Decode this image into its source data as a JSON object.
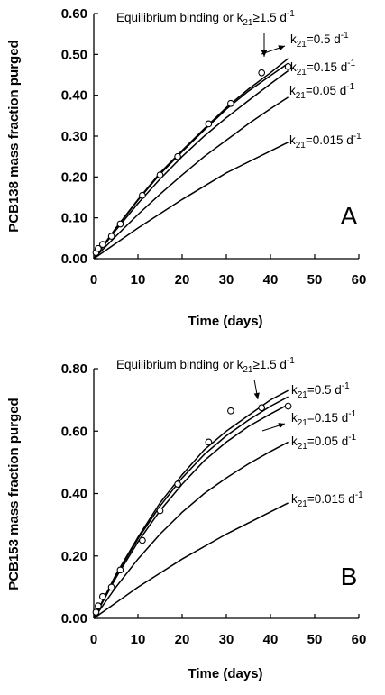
{
  "chart_data": [
    {
      "type": "line",
      "panel_label": "A",
      "xlabel": "Time (days)",
      "ylabel": "PCB138 mass fraction purged",
      "xlim": [
        0,
        60
      ],
      "ylim": [
        0,
        0.6
      ],
      "x_ticks": [
        "0",
        "10",
        "20",
        "30",
        "40",
        "50",
        "60"
      ],
      "y_ticks": [
        "0.00",
        "0.10",
        "0.20",
        "0.30",
        "0.40",
        "0.50",
        "0.60"
      ],
      "grid": false,
      "series": [
        {
          "name": "Equilibrium binding or k21≥1.5 d-1",
          "x": [
            0,
            5,
            10,
            15,
            20,
            25,
            30,
            35,
            40,
            44
          ],
          "y": [
            0,
            0.075,
            0.145,
            0.21,
            0.265,
            0.318,
            0.37,
            0.415,
            0.455,
            0.49
          ]
        },
        {
          "name": "k21=0.5 d-1",
          "x": [
            0,
            5,
            10,
            15,
            20,
            25,
            30,
            35,
            40,
            44
          ],
          "y": [
            0,
            0.074,
            0.143,
            0.207,
            0.262,
            0.315,
            0.366,
            0.41,
            0.448,
            0.478
          ]
        },
        {
          "name": "k21=0.15 d-1",
          "x": [
            0,
            5,
            10,
            15,
            20,
            25,
            30,
            35,
            40,
            44
          ],
          "y": [
            0,
            0.07,
            0.135,
            0.195,
            0.25,
            0.3,
            0.345,
            0.387,
            0.428,
            0.46
          ]
        },
        {
          "name": "k21=0.05 d-1",
          "x": [
            0,
            5,
            10,
            15,
            20,
            25,
            30,
            35,
            40,
            44
          ],
          "y": [
            0,
            0.055,
            0.108,
            0.158,
            0.205,
            0.25,
            0.29,
            0.33,
            0.367,
            0.395
          ]
        },
        {
          "name": "k21=0.015 d-1",
          "x": [
            0,
            10,
            20,
            30,
            44
          ],
          "y": [
            0,
            0.075,
            0.145,
            0.21,
            0.285
          ]
        }
      ],
      "points": {
        "x": [
          0.5,
          1,
          2,
          4,
          6,
          11,
          15,
          19,
          26,
          31,
          38,
          44
        ],
        "y": [
          0.015,
          0.025,
          0.035,
          0.055,
          0.085,
          0.155,
          0.205,
          0.25,
          0.33,
          0.38,
          0.455,
          0.47
        ]
      },
      "annotations": [
        {
          "base": "Equilibrium binding or k",
          "sub": "21",
          "rest": "≥1.5 d",
          "sup": "-1"
        },
        {
          "base": "k",
          "sub": "21",
          "rest": "=0.5 d",
          "sup": "-1"
        },
        {
          "base": "k",
          "sub": "21",
          "rest": "=0.15 d",
          "sup": "-1"
        },
        {
          "base": "k",
          "sub": "21",
          "rest": "=0.05 d",
          "sup": "-1"
        },
        {
          "base": "k",
          "sub": "21",
          "rest": "=0.015 d",
          "sup": "-1"
        }
      ]
    },
    {
      "type": "line",
      "panel_label": "B",
      "xlabel": "Time (days)",
      "ylabel": "PCB153 mass fraction purged",
      "xlim": [
        0,
        60
      ],
      "ylim": [
        0,
        0.8
      ],
      "x_ticks": [
        "0",
        "10",
        "20",
        "30",
        "40",
        "50",
        "60"
      ],
      "y_ticks": [
        "0.00",
        "0.20",
        "0.40",
        "0.60",
        "0.80"
      ],
      "grid": false,
      "series": [
        {
          "name": "Equilibrium binding or k21≥1.5 d-1",
          "x": [
            0,
            5,
            10,
            15,
            20,
            25,
            30,
            35,
            40,
            44
          ],
          "y": [
            0,
            0.14,
            0.26,
            0.37,
            0.46,
            0.54,
            0.6,
            0.65,
            0.7,
            0.73
          ]
        },
        {
          "name": "k21=0.5 d-1",
          "x": [
            0,
            5,
            10,
            15,
            20,
            25,
            30,
            35,
            40,
            44
          ],
          "y": [
            0,
            0.137,
            0.255,
            0.36,
            0.45,
            0.525,
            0.585,
            0.635,
            0.68,
            0.71
          ]
        },
        {
          "name": "k21=0.15 d-1",
          "x": [
            0,
            5,
            10,
            15,
            20,
            25,
            30,
            35,
            40,
            44
          ],
          "y": [
            0,
            0.13,
            0.245,
            0.345,
            0.43,
            0.505,
            0.565,
            0.615,
            0.655,
            0.685
          ]
        },
        {
          "name": "k21=0.05 d-1",
          "x": [
            0,
            5,
            10,
            15,
            20,
            25,
            30,
            35,
            40,
            44
          ],
          "y": [
            0,
            0.1,
            0.19,
            0.27,
            0.34,
            0.4,
            0.45,
            0.495,
            0.535,
            0.565
          ]
        },
        {
          "name": "k21=0.015 d-1",
          "x": [
            0,
            10,
            20,
            30,
            44
          ],
          "y": [
            0,
            0.1,
            0.19,
            0.27,
            0.37
          ]
        }
      ],
      "points": {
        "x": [
          0.5,
          1,
          2,
          4,
          6,
          11,
          15,
          19,
          26,
          31,
          38,
          44
        ],
        "y": [
          0.02,
          0.04,
          0.07,
          0.1,
          0.155,
          0.25,
          0.345,
          0.43,
          0.565,
          0.665,
          0.675,
          0.68
        ]
      },
      "annotations": [
        {
          "base": "Equilibrium binding or k",
          "sub": "21",
          "rest": "≥1.5 d",
          "sup": "-1"
        },
        {
          "base": "k",
          "sub": "21",
          "rest": "=0.5 d",
          "sup": "-1"
        },
        {
          "base": "k",
          "sub": "21",
          "rest": "=0.15 d",
          "sup": "-1"
        },
        {
          "base": "k",
          "sub": "21",
          "rest": "=0.05 d",
          "sup": "-1"
        },
        {
          "base": "k",
          "sub": "21",
          "rest": "=0.015 d",
          "sup": "-1"
        }
      ]
    }
  ]
}
